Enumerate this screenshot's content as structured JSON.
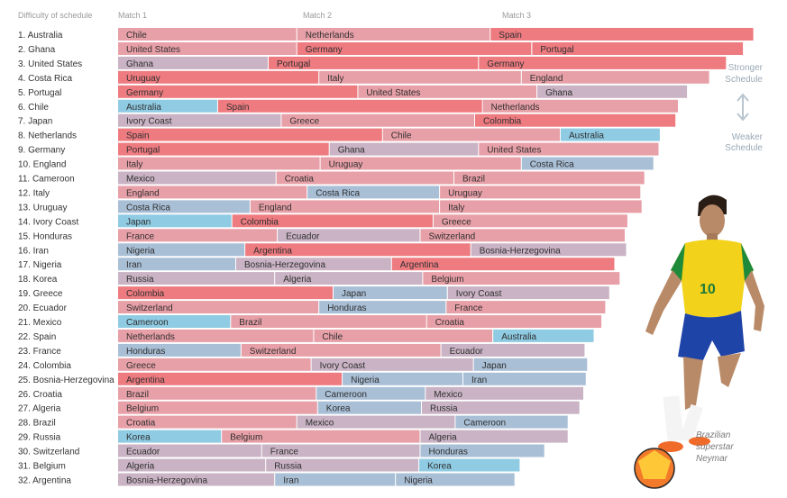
{
  "header": {
    "rank_heading": "Difficulty of schedule",
    "match1": "Match 1",
    "match2": "Match 2",
    "match3": "Match 3"
  },
  "side_labels": {
    "stronger": [
      "Stronger",
      "Schedule"
    ],
    "weaker": [
      "Weaker",
      "Schedule"
    ]
  },
  "caption": [
    "Brazilian",
    "superstar",
    "Neymar"
  ],
  "colors": {
    "strongest": "#ee7b80",
    "strong": "#e8a0a8",
    "middle": "#c9b3c4",
    "weak": "#a9bfd6",
    "weakest": "#8fcbe3",
    "arrow": "#b9c5cf"
  },
  "chart_data": {
    "type": "stacked-bar",
    "title": "",
    "xlabel": "",
    "ylabel": "",
    "segment_labels": [
      "Match 1",
      "Match 2",
      "Match 3"
    ],
    "rows": [
      {
        "label": "1. Australia",
        "opponents": [
          "Chile",
          "Netherlands",
          "Spain"
        ],
        "values": [
          13.8,
          14.9,
          20.3
        ],
        "tones": [
          "strong",
          "strong",
          "strongest"
        ]
      },
      {
        "label": "2. Ghana",
        "opponents": [
          "United States",
          "Germany",
          "Portugal"
        ],
        "values": [
          13.8,
          18.1,
          16.3
        ],
        "tones": [
          "strong",
          "strongest",
          "strongest"
        ]
      },
      {
        "label": "3. United States",
        "opponents": [
          "Ghana",
          "Portugal",
          "Germany"
        ],
        "values": [
          11.6,
          16.2,
          19.1
        ],
        "tones": [
          "middle",
          "strongest",
          "strongest"
        ]
      },
      {
        "label": "4. Costa Rica",
        "opponents": [
          "Uruguay",
          "Italy",
          "England"
        ],
        "values": [
          15.5,
          15.6,
          14.5
        ],
        "tones": [
          "strongest",
          "strong",
          "strong"
        ]
      },
      {
        "label": "5. Portugal",
        "opponents": [
          "Germany",
          "United States",
          "Ghana"
        ],
        "values": [
          18.5,
          13.8,
          11.6
        ],
        "tones": [
          "strongest",
          "strong",
          "middle"
        ]
      },
      {
        "label": "6. Chile",
        "opponents": [
          "Australia",
          "Spain",
          "Netherlands"
        ],
        "values": [
          7.7,
          20.4,
          15.1
        ],
        "tones": [
          "weakest",
          "strongest",
          "strong"
        ]
      },
      {
        "label": "7. Japan",
        "opponents": [
          "Ivory Coast",
          "Greece",
          "Colombia"
        ],
        "values": [
          12.6,
          14.9,
          15.5
        ],
        "tones": [
          "middle",
          "strong",
          "strongest"
        ]
      },
      {
        "label": "8. Netherlands",
        "opponents": [
          "Spain",
          "Chile",
          "Australia"
        ],
        "values": [
          20.4,
          13.7,
          7.7
        ],
        "tones": [
          "strongest",
          "strong",
          "weakest"
        ]
      },
      {
        "label": "9. Germany",
        "opponents": [
          "Portugal",
          "Ghana",
          "United States"
        ],
        "values": [
          16.3,
          11.5,
          13.9
        ],
        "tones": [
          "strongest",
          "middle",
          "strong"
        ]
      },
      {
        "label": "10. England",
        "opponents": [
          "Italy",
          "Uruguay",
          "Costa Rica"
        ],
        "values": [
          15.6,
          15.5,
          10.2
        ],
        "tones": [
          "strong",
          "strong",
          "weak"
        ]
      },
      {
        "label": "11. Cameroon",
        "opponents": [
          "Mexico",
          "Croatia",
          "Brazil"
        ],
        "values": [
          12.2,
          13.7,
          14.7
        ],
        "tones": [
          "middle",
          "strong",
          "strong"
        ]
      },
      {
        "label": "12. Italy",
        "opponents": [
          "England",
          "Costa Rica",
          "Uruguay"
        ],
        "values": [
          14.6,
          10.2,
          15.5
        ],
        "tones": [
          "strong",
          "weak",
          "strong"
        ]
      },
      {
        "label": "13. Uruguay",
        "opponents": [
          "Costa Rica",
          "England",
          "Italy"
        ],
        "values": [
          10.2,
          14.6,
          15.6
        ],
        "tones": [
          "weak",
          "strong",
          "strong"
        ]
      },
      {
        "label": "14. Ivory Coast",
        "opponents": [
          "Japan",
          "Colombia",
          "Greece"
        ],
        "values": [
          8.8,
          15.5,
          15.0
        ],
        "tones": [
          "weakest",
          "strongest",
          "strong"
        ]
      },
      {
        "label": "15. Honduras",
        "opponents": [
          "France",
          "Ecuador",
          "Switzerland"
        ],
        "values": [
          12.3,
          11.0,
          15.8
        ],
        "tones": [
          "strong",
          "middle",
          "strong"
        ]
      },
      {
        "label": "16. Iran",
        "opponents": [
          "Nigeria",
          "Argentina",
          "Bosnia-Herzegovina"
        ],
        "values": [
          9.8,
          17.4,
          12.0
        ],
        "tones": [
          "weak",
          "strongest",
          "middle"
        ]
      },
      {
        "label": "17. Nigeria",
        "opponents": [
          "Iran",
          "Bosnia-Herzegovina",
          "Argentina"
        ],
        "values": [
          9.1,
          12.0,
          17.2
        ],
        "tones": [
          "weak",
          "middle",
          "strongest"
        ]
      },
      {
        "label": "18. Korea",
        "opponents": [
          "Russia",
          "Algeria",
          "Belgium"
        ],
        "values": [
          12.1,
          11.4,
          15.2
        ],
        "tones": [
          "middle",
          "middle",
          "strong"
        ]
      },
      {
        "label": "19. Greece",
        "opponents": [
          "Colombia",
          "Japan",
          "Ivory Coast"
        ],
        "values": [
          16.6,
          8.8,
          12.5
        ],
        "tones": [
          "strongest",
          "weak",
          "middle"
        ]
      },
      {
        "label": "20. Ecuador",
        "opponents": [
          "Switzerland",
          "Honduras",
          "France"
        ],
        "values": [
          15.5,
          9.8,
          12.3
        ],
        "tones": [
          "strong",
          "weak",
          "strong"
        ]
      },
      {
        "label": "21. Mexico",
        "opponents": [
          "Cameroon",
          "Brazil",
          "Croatia"
        ],
        "values": [
          8.7,
          15.1,
          13.5
        ],
        "tones": [
          "weakest",
          "strong",
          "strong"
        ]
      },
      {
        "label": "22. Spain",
        "opponents": [
          "Netherlands",
          "Chile",
          "Australia"
        ],
        "values": [
          15.1,
          13.8,
          7.8
        ],
        "tones": [
          "strong",
          "strong",
          "weakest"
        ]
      },
      {
        "label": "23. France",
        "opponents": [
          "Honduras",
          "Switzerland",
          "Ecuador"
        ],
        "values": [
          9.5,
          15.4,
          11.1
        ],
        "tones": [
          "weak",
          "strong",
          "middle"
        ]
      },
      {
        "label": "24. Colombia",
        "opponents": [
          "Greece",
          "Ivory Coast",
          "Japan"
        ],
        "values": [
          14.9,
          12.5,
          8.8
        ],
        "tones": [
          "strong",
          "middle",
          "weak"
        ]
      },
      {
        "label": "25. Bosnia-Herzegovina",
        "opponents": [
          "Argentina",
          "Nigeria",
          "Iran"
        ],
        "values": [
          17.3,
          9.3,
          9.5
        ],
        "tones": [
          "strongest",
          "weak",
          "weak"
        ]
      },
      {
        "label": "26. Croatia",
        "opponents": [
          "Brazil",
          "Cameroon",
          "Mexico"
        ],
        "values": [
          15.3,
          8.4,
          12.2
        ],
        "tones": [
          "strong",
          "weak",
          "middle"
        ]
      },
      {
        "label": "27. Algeria",
        "opponents": [
          "Belgium",
          "Korea",
          "Russia"
        ],
        "values": [
          15.4,
          8.0,
          12.2
        ],
        "tones": [
          "strong",
          "weak",
          "middle"
        ]
      },
      {
        "label": "28. Brazil",
        "opponents": [
          "Croatia",
          "Mexico",
          "Cameroon"
        ],
        "values": [
          13.8,
          12.2,
          8.7
        ],
        "tones": [
          "strong",
          "middle",
          "weak"
        ]
      },
      {
        "label": "29. Russia",
        "opponents": [
          "Korea",
          "Belgium",
          "Algeria"
        ],
        "values": [
          8.0,
          15.3,
          11.4
        ],
        "tones": [
          "weakest",
          "strong",
          "middle"
        ]
      },
      {
        "label": "30. Switzerland",
        "opponents": [
          "Ecuador",
          "France",
          "Honduras"
        ],
        "values": [
          11.1,
          12.2,
          9.6
        ],
        "tones": [
          "middle",
          "middle",
          "weak"
        ]
      },
      {
        "label": "31. Belgium",
        "opponents": [
          "Algeria",
          "Russia",
          "Korea"
        ],
        "values": [
          11.4,
          11.8,
          7.8
        ],
        "tones": [
          "middle",
          "middle",
          "weakest"
        ]
      },
      {
        "label": "32. Argentina",
        "opponents": [
          "Bosnia-Herzegovina",
          "Iran",
          "Nigeria"
        ],
        "values": [
          12.1,
          9.3,
          9.2
        ],
        "tones": [
          "middle",
          "weak",
          "weak"
        ]
      }
    ]
  }
}
